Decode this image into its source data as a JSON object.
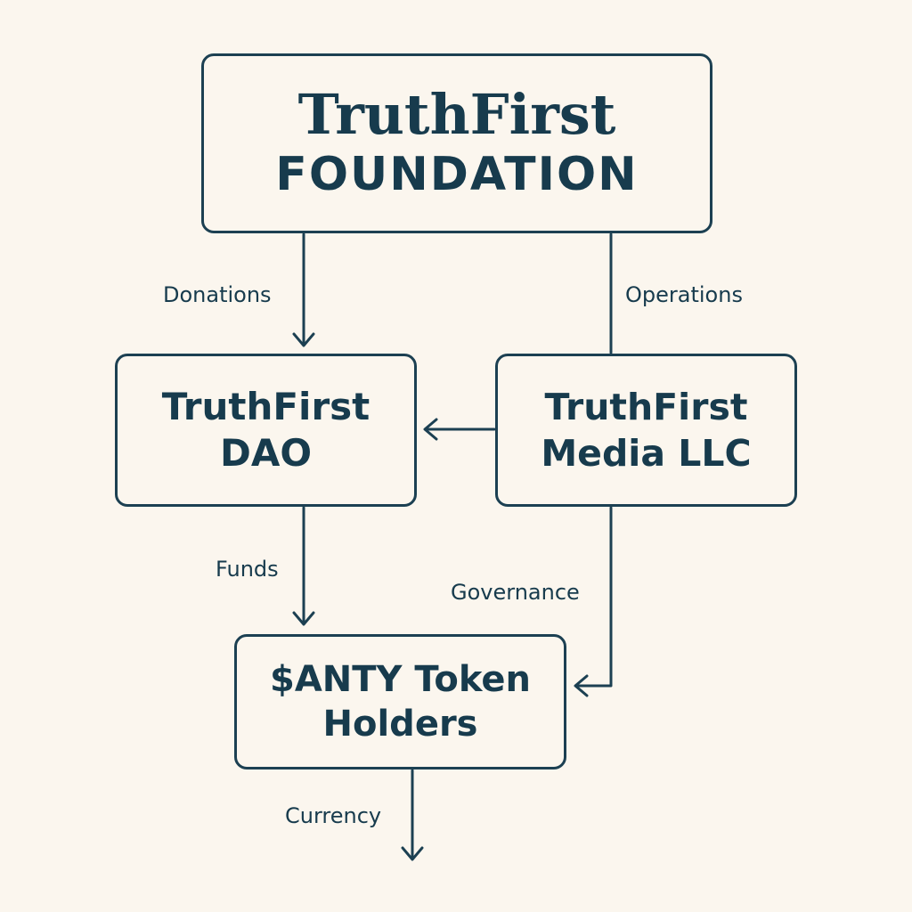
{
  "colors": {
    "background": "#fbf6ee",
    "stroke": "#1c4052",
    "text": "#173b4d"
  },
  "nodes": {
    "foundation": {
      "lines": [
        "TruthFirst",
        "FOUNDATION"
      ]
    },
    "dao": {
      "lines": [
        "TruthFirst",
        "DAO"
      ]
    },
    "media": {
      "lines": [
        "TruthFirst",
        "Media LLC"
      ]
    },
    "token": {
      "lines": [
        "$ANTY Token",
        "Holders"
      ]
    }
  },
  "edges": {
    "donations": {
      "label": "Donations",
      "from": "TruthFirst FOUNDATION",
      "to": "TruthFirst DAO"
    },
    "operations": {
      "label": "Operations",
      "from": "TruthFirst FOUNDATION",
      "to": "TruthFirst Media LLC"
    },
    "media_to_dao": {
      "label": "",
      "from": "TruthFirst Media LLC",
      "to": "TruthFirst DAO"
    },
    "funds": {
      "label": "Funds",
      "from": "TruthFirst DAO",
      "to": "$ANTY Token Holders"
    },
    "governance": {
      "label": "Governance",
      "from": "TruthFirst Media LLC",
      "to": "$ANTY Token Holders"
    },
    "currency": {
      "label": "Currency",
      "from": "$ANTY Token Holders",
      "to": ""
    }
  }
}
